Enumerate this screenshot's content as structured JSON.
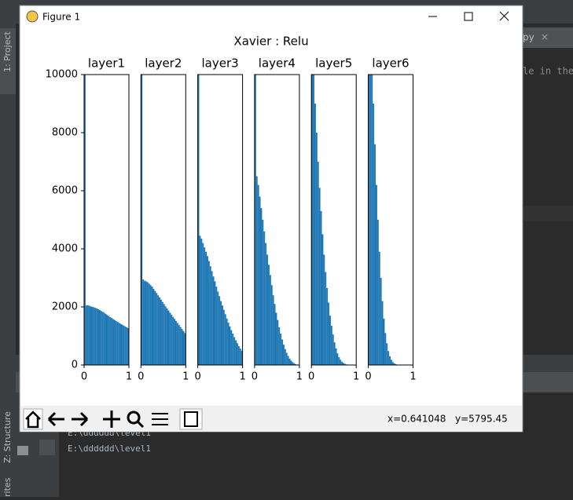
{
  "window": {
    "title": "Figure 1"
  },
  "figure": {
    "suptitle": "Xavier : Relu"
  },
  "status": {
    "x": "x=0.641048",
    "y": "y=5795.45"
  },
  "ide": {
    "sidebar": [
      "1: Project",
      "Z: Structure",
      "rites"
    ],
    "tab": "py",
    "editor_text": "le in the",
    "console": [
      "E:\\dddddd\\level1",
      "E:\\dddddd\\level1"
    ]
  },
  "chart_data": [
    {
      "type": "histogram",
      "title": "layer1",
      "color": "#1f77b4",
      "xlim": [
        0,
        1
      ],
      "ylim": [
        0,
        10000
      ],
      "xticks": [
        0,
        1
      ],
      "yticks": [
        0,
        2000,
        4000,
        6000,
        8000,
        10000
      ],
      "bins": [
        0,
        0.0333,
        0.0667,
        0.1,
        0.1333,
        0.1667,
        0.2,
        0.2333,
        0.2667,
        0.3,
        0.3333,
        0.3667,
        0.4,
        0.4333,
        0.4667,
        0.5,
        0.5333,
        0.5667,
        0.6,
        0.6333,
        0.6667,
        0.7,
        0.7333,
        0.7667,
        0.8,
        0.8333,
        0.8667,
        0.9,
        0.9333,
        0.9667,
        1
      ],
      "values": [
        10000,
        2050,
        2060,
        2040,
        2020,
        2000,
        1990,
        1970,
        1950,
        1920,
        1890,
        1860,
        1830,
        1800,
        1760,
        1720,
        1690,
        1650,
        1620,
        1580,
        1550,
        1510,
        1480,
        1450,
        1420,
        1390,
        1360,
        1330,
        1300,
        1270
      ]
    },
    {
      "type": "histogram",
      "title": "layer2",
      "color": "#1f77b4",
      "xlim": [
        0,
        1
      ],
      "ylim": [
        0,
        10000
      ],
      "xticks": [
        0,
        1
      ],
      "bins": [
        0,
        0.0333,
        0.0667,
        0.1,
        0.1333,
        0.1667,
        0.2,
        0.2333,
        0.2667,
        0.3,
        0.3333,
        0.3667,
        0.4,
        0.4333,
        0.4667,
        0.5,
        0.5333,
        0.5667,
        0.6,
        0.6333,
        0.6667,
        0.7,
        0.7333,
        0.7667,
        0.8,
        0.8333,
        0.8667,
        0.9,
        0.9333,
        0.9667,
        1
      ],
      "values": [
        10000,
        2950,
        2900,
        2880,
        2850,
        2800,
        2750,
        2700,
        2620,
        2550,
        2480,
        2400,
        2330,
        2250,
        2170,
        2100,
        2020,
        1950,
        1880,
        1800,
        1730,
        1660,
        1590,
        1520,
        1450,
        1380,
        1310,
        1240,
        1170,
        1100
      ]
    },
    {
      "type": "histogram",
      "title": "layer3",
      "color": "#1f77b4",
      "xlim": [
        0,
        1
      ],
      "ylim": [
        0,
        10000
      ],
      "xticks": [
        0,
        1
      ],
      "bins": [
        0,
        0.0333,
        0.0667,
        0.1,
        0.1333,
        0.1667,
        0.2,
        0.2333,
        0.2667,
        0.3,
        0.3333,
        0.3667,
        0.4,
        0.4333,
        0.4667,
        0.5,
        0.5333,
        0.5667,
        0.6,
        0.6333,
        0.6667,
        0.7,
        0.7333,
        0.7667,
        0.8,
        0.8333,
        0.8667,
        0.9,
        0.9333,
        0.9667,
        1
      ],
      "values": [
        10000,
        4450,
        4350,
        4200,
        4050,
        3900,
        3750,
        3580,
        3400,
        3230,
        3050,
        2880,
        2700,
        2530,
        2370,
        2200,
        2050,
        1900,
        1750,
        1600,
        1460,
        1330,
        1200,
        1080,
        960,
        850,
        750,
        650,
        570,
        490
      ]
    },
    {
      "type": "histogram",
      "title": "layer4",
      "color": "#1f77b4",
      "xlim": [
        0,
        1
      ],
      "ylim": [
        0,
        10000
      ],
      "xticks": [
        0,
        1
      ],
      "bins": [
        0,
        0.0333,
        0.0667,
        0.1,
        0.1333,
        0.1667,
        0.2,
        0.2333,
        0.2667,
        0.3,
        0.3333,
        0.3667,
        0.4,
        0.4333,
        0.4667,
        0.5,
        0.5333,
        0.5667,
        0.6,
        0.6333,
        0.6667,
        0.7,
        0.7333,
        0.7667,
        0.8,
        0.8333,
        0.8667,
        0.9,
        0.9333,
        0.9667,
        1
      ],
      "values": [
        10000,
        6500,
        6200,
        5800,
        5400,
        5000,
        4600,
        4200,
        3800,
        3450,
        3100,
        2750,
        2400,
        2100,
        1800,
        1550,
        1300,
        1080,
        880,
        700,
        550,
        420,
        310,
        220,
        150,
        100,
        60,
        30,
        15,
        5
      ]
    },
    {
      "type": "histogram",
      "title": "layer5",
      "color": "#1f77b4",
      "xlim": [
        0,
        1
      ],
      "ylim": [
        0,
        10000
      ],
      "xticks": [
        0,
        1
      ],
      "bins": [
        0,
        0.0333,
        0.0667,
        0.1,
        0.1333,
        0.1667,
        0.2,
        0.2333,
        0.2667,
        0.3,
        0.3333,
        0.3667,
        0.4,
        0.4333,
        0.4667,
        0.5,
        0.5333,
        0.5667,
        0.6,
        0.6333,
        0.6667,
        0.7,
        0.7333,
        0.7667,
        0.8,
        0.8333,
        0.8667,
        0.9,
        0.9333,
        0.9667,
        1
      ],
      "values": [
        10000,
        10000,
        9000,
        8000,
        7000,
        6100,
        5300,
        4500,
        3800,
        3200,
        2650,
        2150,
        1700,
        1350,
        1050,
        780,
        570,
        400,
        270,
        180,
        110,
        70,
        40,
        20,
        10,
        5,
        2,
        1,
        0,
        0
      ]
    },
    {
      "type": "histogram",
      "title": "layer6",
      "color": "#1f77b4",
      "xlim": [
        0,
        1
      ],
      "ylim": [
        0,
        10000
      ],
      "xticks": [
        0,
        1
      ],
      "bins": [
        0,
        0.0333,
        0.0667,
        0.1,
        0.1333,
        0.1667,
        0.2,
        0.2333,
        0.2667,
        0.3,
        0.3333,
        0.3667,
        0.4,
        0.4333,
        0.4667,
        0.5,
        0.5333,
        0.5667,
        0.6,
        0.6333,
        0.6667,
        0.7,
        0.7333,
        0.7667,
        0.8,
        0.8333,
        0.8667,
        0.9,
        0.9333,
        0.9667,
        1
      ],
      "values": [
        10000,
        10000,
        10000,
        9000,
        7600,
        6200,
        5000,
        3900,
        3000,
        2200,
        1600,
        1100,
        750,
        480,
        300,
        180,
        100,
        55,
        30,
        15,
        7,
        3,
        1,
        0,
        0,
        0,
        0,
        0,
        0,
        0
      ]
    }
  ]
}
